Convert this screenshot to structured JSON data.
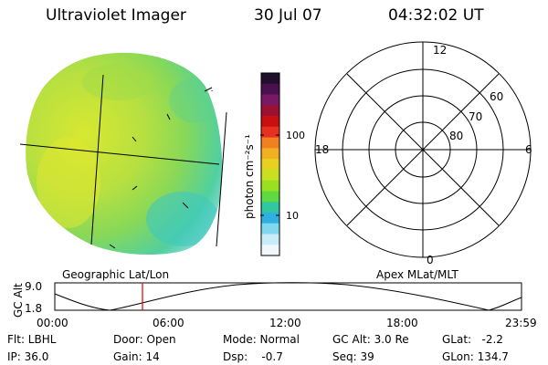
{
  "header": {
    "title": "Ultraviolet Imager",
    "date": "30 Jul 07",
    "time": "04:32:02 UT"
  },
  "colorbar": {
    "unit_label": "photon cm⁻²s⁻¹",
    "ticks": [
      "100",
      "10"
    ],
    "colors": [
      "#20102e",
      "#4a1050",
      "#7a1868",
      "#9c1030",
      "#c81010",
      "#e83020",
      "#f28020",
      "#f0b020",
      "#e8d020",
      "#c8e020",
      "#98e020",
      "#60d840",
      "#30c8a0",
      "#30b0e0",
      "#80d8f0",
      "#c8ecf8",
      "#f0f8fc"
    ]
  },
  "image_panel": {
    "label": "Geographic Lat/Lon"
  },
  "polar_panel": {
    "label": "Apex MLat/MLT",
    "mlt_labels": {
      "top": "12",
      "left": "18",
      "right": "6",
      "bottom": "0"
    },
    "lat_labels": [
      "60",
      "70",
      "80"
    ]
  },
  "gc_alt_plot": {
    "ylabel": "GC Alt",
    "y_ticks": [
      "9.0",
      "1.8"
    ],
    "x_ticks": [
      "00:00",
      "06:00",
      "12:00",
      "18:00",
      "23:59"
    ],
    "marker_time_label": "04:32",
    "marker_color": "#e00000"
  },
  "info": {
    "flt": "Flt: LBHL",
    "door": "Door: Open",
    "mode": "Mode: Normal",
    "gc_alt": "GC Alt: 3.0 Re",
    "glat": "GLat:   -2.2",
    "ip": "IP: 36.0",
    "gain": "Gain: 14",
    "dsp": "Dsp:    -0.7",
    "seq": "Seq: 39",
    "glon": "GLon: 134.7"
  }
}
